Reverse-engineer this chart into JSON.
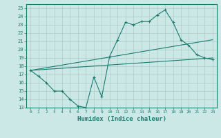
{
  "xlabel": "Humidex (Indice chaleur)",
  "bg_color": "#cce8e6",
  "grid_color": "#aaccca",
  "line_color": "#1a7a6e",
  "xlim": [
    -0.5,
    23.5
  ],
  "ylim": [
    13,
    25.5
  ],
  "xticks": [
    0,
    1,
    2,
    3,
    4,
    5,
    6,
    7,
    8,
    9,
    10,
    11,
    12,
    13,
    14,
    15,
    16,
    17,
    18,
    19,
    20,
    21,
    22,
    23
  ],
  "yticks": [
    13,
    14,
    15,
    16,
    17,
    18,
    19,
    20,
    21,
    22,
    23,
    24,
    25
  ],
  "line1_x": [
    0,
    1,
    2,
    3,
    4,
    5,
    6,
    7,
    8,
    9,
    10,
    11,
    12,
    13,
    14,
    15,
    16,
    17,
    18,
    19,
    20,
    21,
    22,
    23
  ],
  "line1_y": [
    17.5,
    16.8,
    16.0,
    15.0,
    15.0,
    14.0,
    13.2,
    13.0,
    16.7,
    14.3,
    19.2,
    21.2,
    23.3,
    23.0,
    23.4,
    23.4,
    24.2,
    24.8,
    23.3,
    21.2,
    20.5,
    19.4,
    19.0,
    18.8
  ],
  "line2_x": [
    0,
    23
  ],
  "line2_y": [
    17.5,
    19.0
  ],
  "line3_x": [
    0,
    23
  ],
  "line3_y": [
    17.5,
    21.2
  ]
}
